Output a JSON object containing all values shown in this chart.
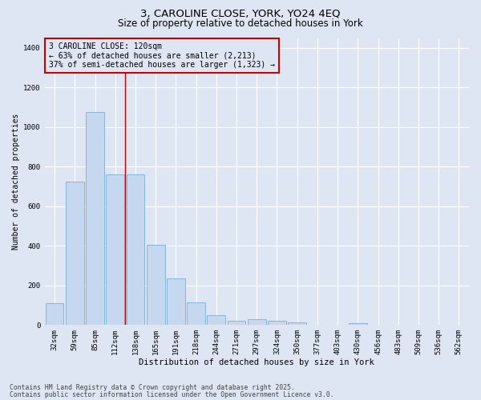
{
  "title1": "3, CAROLINE CLOSE, YORK, YO24 4EQ",
  "title2": "Size of property relative to detached houses in York",
  "xlabel": "Distribution of detached houses by size in York",
  "ylabel": "Number of detached properties",
  "categories": [
    "32sqm",
    "59sqm",
    "85sqm",
    "112sqm",
    "138sqm",
    "165sqm",
    "191sqm",
    "218sqm",
    "244sqm",
    "271sqm",
    "297sqm",
    "324sqm",
    "350sqm",
    "377sqm",
    "403sqm",
    "430sqm",
    "456sqm",
    "483sqm",
    "509sqm",
    "536sqm",
    "562sqm"
  ],
  "values": [
    110,
    725,
    1075,
    760,
    760,
    405,
    235,
    115,
    50,
    20,
    28,
    20,
    15,
    0,
    0,
    10,
    0,
    0,
    0,
    0,
    0
  ],
  "bar_color": "#c5d8f0",
  "bar_edge_color": "#7bafd4",
  "vline_color": "#cc0000",
  "vline_pos": 3.5,
  "annotation_text": "3 CAROLINE CLOSE: 120sqm\n← 63% of detached houses are smaller (2,213)\n37% of semi-detached houses are larger (1,323) →",
  "annotation_box_edgecolor": "#cc0000",
  "ylim": [
    0,
    1450
  ],
  "yticks": [
    0,
    200,
    400,
    600,
    800,
    1000,
    1200,
    1400
  ],
  "background_color": "#dde6f2",
  "grid_color": "white",
  "footer1": "Contains HM Land Registry data © Crown copyright and database right 2025.",
  "footer2": "Contains public sector information licensed under the Open Government Licence v3.0.",
  "title1_fontsize": 9.5,
  "title2_fontsize": 8.5,
  "annot_fontsize": 7,
  "tick_fontsize": 6.5,
  "xlabel_fontsize": 7.5,
  "ylabel_fontsize": 7,
  "footer_fontsize": 5.8
}
